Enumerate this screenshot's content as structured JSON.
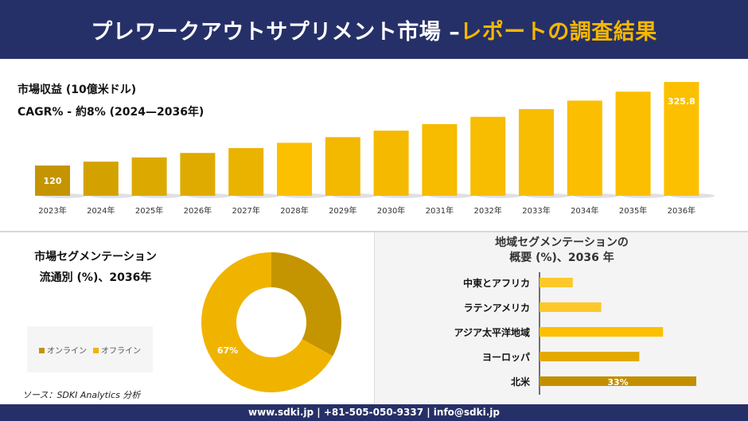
{
  "header": {
    "title_main": "プレワークアウトサプリメント市場 –",
    "title_highlight": "レポートの調査結果"
  },
  "revenue": {
    "title": "市場収益 (10億米ドル)",
    "cagr": "CAGR% - 約8% (2024—2036年)"
  },
  "chart_data": [
    {
      "type": "bar",
      "categories": [
        "2023年",
        "2024年",
        "2025年",
        "2026年",
        "2027年",
        "2028年",
        "2029年",
        "2030年",
        "2031年",
        "2032年",
        "2033年",
        "2034年",
        "2035年",
        "2036年"
      ],
      "values": [
        120,
        129.6,
        140,
        151,
        163,
        176,
        190,
        206,
        222,
        240,
        259,
        280,
        302,
        325.8
      ],
      "data_labels": {
        "0": "120",
        "13": "325.8"
      },
      "colors": [
        "#c49500",
        "#d4a200",
        "#dca900",
        "#e0ab00",
        "#eab300",
        "#fcc000",
        "#f3b800",
        "#f5b900",
        "#f7bb00",
        "#f8bc00",
        "#f8bd00",
        "#fbbe00",
        "#fbbf00",
        "#fcc000"
      ]
    },
    {
      "type": "pie",
      "title": "市場セグメンテーション 流通別 (%)、2036年",
      "categories": [
        "オンライン",
        "オフライン"
      ],
      "values": [
        33,
        67
      ],
      "data_labels": {
        "1": "67%"
      },
      "colors": [
        "#c49500",
        "#f0b400"
      ],
      "legend": "left"
    },
    {
      "type": "bar",
      "orientation": "horizontal",
      "title": "地域セグメンテーションの 概要 (%)、2036 年",
      "categories": [
        "中東とアフリカ",
        "ラテンアメリカ",
        "アジア太平洋地域",
        "ヨーロッパ",
        "北米"
      ],
      "values": [
        7,
        13,
        26,
        21,
        33
      ],
      "data_labels": {
        "4": "33%"
      },
      "colors": [
        "#fcc82a",
        "#fcc82a",
        "#fcc000",
        "#e2aa00",
        "#c28f00"
      ]
    }
  ],
  "segment": {
    "title1": "市場セグメンテーション",
    "title2": "流通別 (%)、2036年",
    "legend": [
      "オンライン",
      "オフライン"
    ]
  },
  "region": {
    "title1": "地域セグメンテーションの",
    "title2": "概要 (%)、2036 年"
  },
  "source": "ソース：SDKI Analytics 分析",
  "footer": "www.sdki.jp | +81-505-050-9337 | info@sdki.jp"
}
